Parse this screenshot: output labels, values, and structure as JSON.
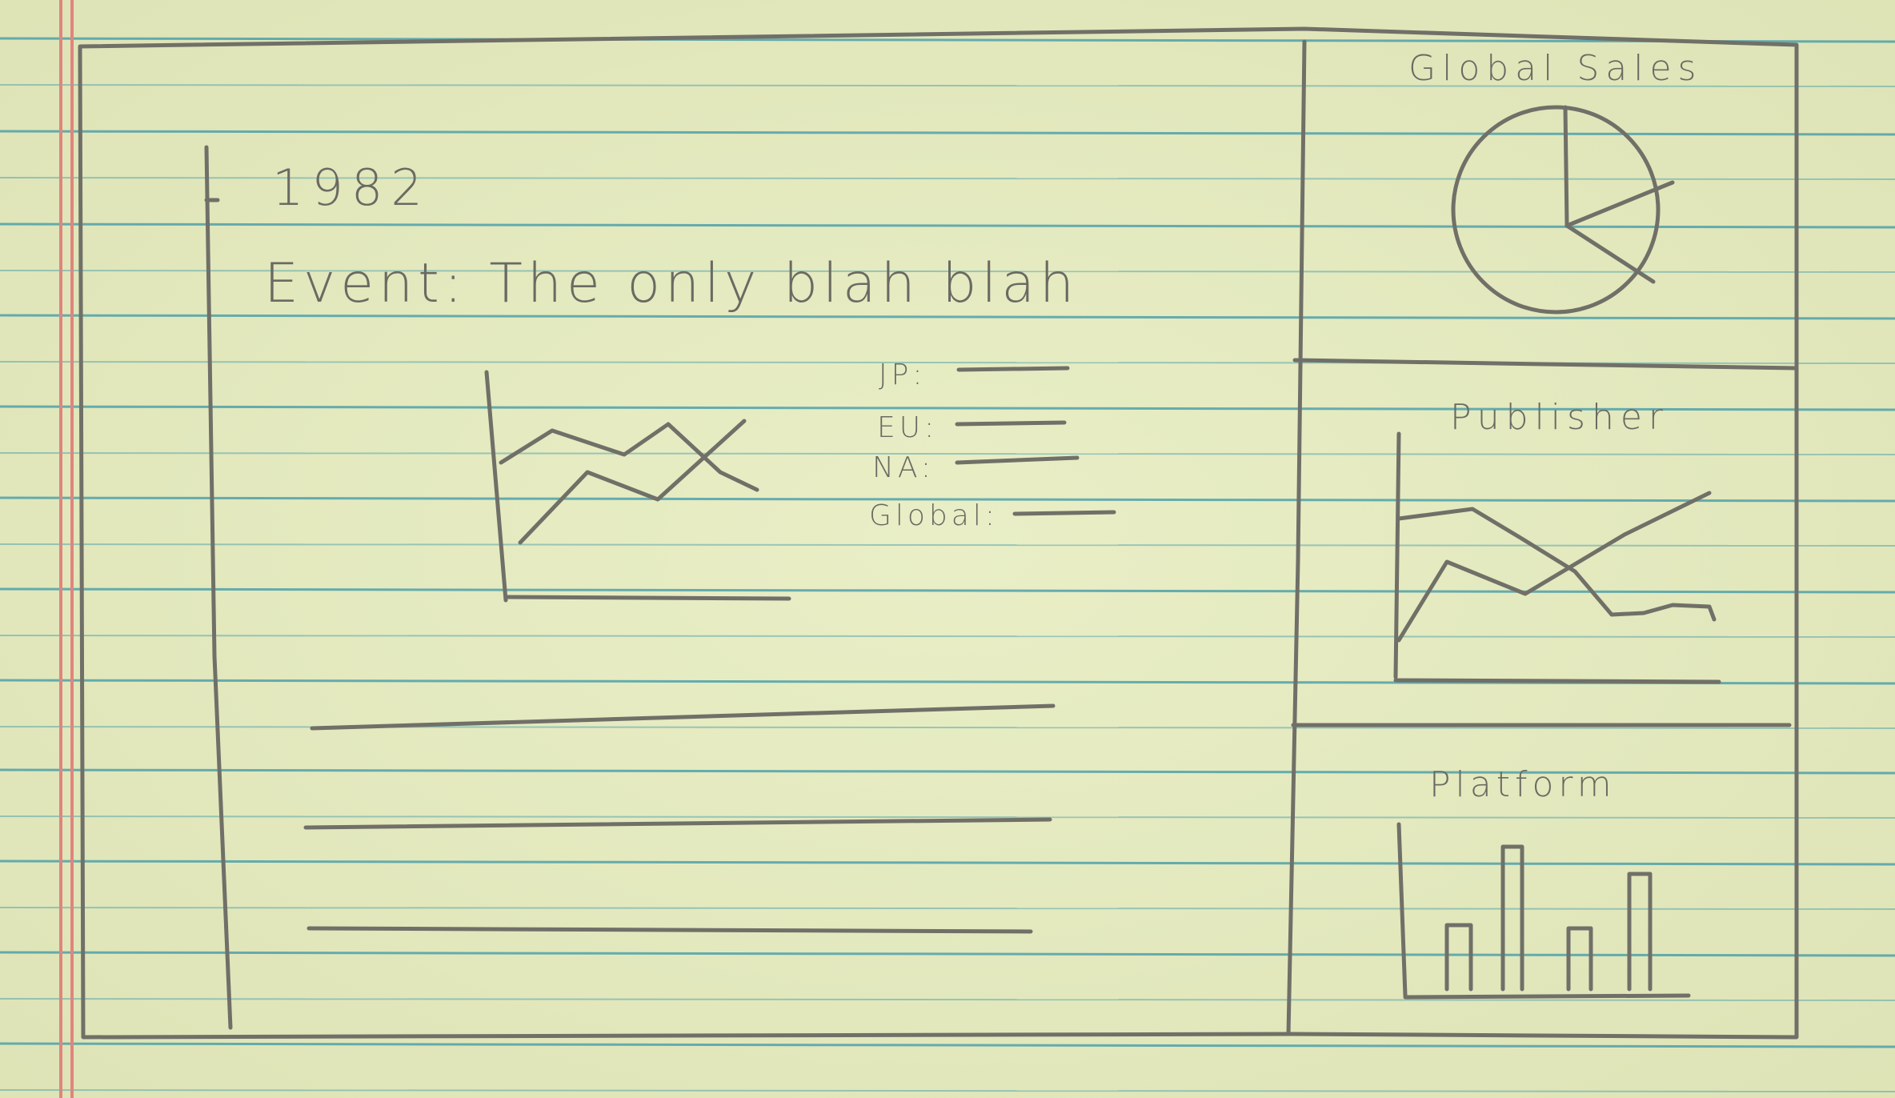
{
  "sketch": {
    "year": "1982",
    "event_line": "Event: The only blah blah",
    "region_labels": {
      "jp": "JP:",
      "eu": "EU:",
      "na": "NA:",
      "global": "Global:"
    }
  },
  "sidebar": {
    "global_sales_title": "Global Sales",
    "publisher_title": "Publisher",
    "platform_title": "Platform"
  },
  "colors": {
    "paper": "#e8ecc2",
    "rule_line": "#3a97a8",
    "margin_line": "#e0857e",
    "pencil": "#707068"
  }
}
